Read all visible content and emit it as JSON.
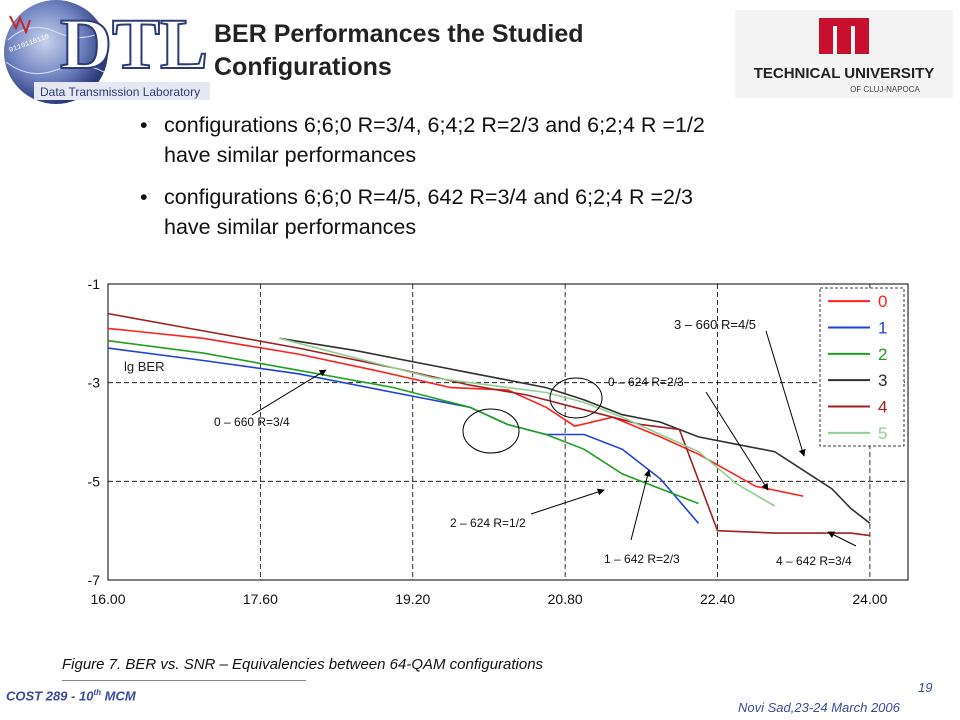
{
  "header": {
    "title_line1": "BER Performances the Studied",
    "title_line2": "Configurations",
    "logo_left_text": "DTL",
    "logo_left_subtitle": "Data Transmission Laboratory",
    "logo_right_text": "TECHNICAL UNIVERSITY",
    "logo_right_subtitle": "OF CLUJ-NAPOCA"
  },
  "bullets": [
    {
      "line1": "configurations 6;6;0 R=3/4, 6;4;2 R=2/3 and 6;2;4 R =1/2",
      "line2": "have similar performances"
    },
    {
      "line1": "configurations 6;6;0 R=4/5, 642 R=3/4 and 6;2;4 R =2/3",
      "line2": "have similar performances"
    }
  ],
  "chart_data": {
    "type": "line",
    "xlim": [
      16.0,
      24.4
    ],
    "ylim": [
      -7,
      -1
    ],
    "xticks": [
      "16.00",
      "17.60",
      "19.20",
      "20.80",
      "22.40",
      "24.00"
    ],
    "xtick_values": [
      16.0,
      17.6,
      19.2,
      20.8,
      22.4,
      24.0
    ],
    "yticks": [
      "-1",
      "-3",
      "-5",
      "-7"
    ],
    "ytick_values": [
      -1,
      -3,
      -5,
      -7
    ],
    "grid": "dashed",
    "legend_position": "top-right",
    "ylabel": "lg BER",
    "series": [
      {
        "name": "0",
        "color": "#ff2020",
        "x": [
          16.0,
          17.0,
          18.0,
          18.8,
          19.6,
          20.2,
          20.6,
          20.9,
          21.3,
          21.8,
          22.2,
          22.8,
          23.3
        ],
        "y": [
          -1.9,
          -2.1,
          -2.42,
          -2.75,
          -3.1,
          -3.15,
          -3.5,
          -3.88,
          -3.7,
          -4.1,
          -4.45,
          -5.1,
          -5.3
        ]
      },
      {
        "name": "1",
        "color": "#2040e0",
        "x": [
          16.0,
          17.0,
          18.0,
          19.0,
          19.4,
          19.8,
          20.2,
          20.6,
          21.0,
          21.4,
          21.8,
          22.2
        ],
        "y": [
          -2.3,
          -2.55,
          -2.82,
          -3.2,
          -3.35,
          -3.5,
          -3.85,
          -4.05,
          -4.05,
          -4.35,
          -4.95,
          -5.85
        ]
      },
      {
        "name": "2",
        "color": "#20a020",
        "x": [
          16.0,
          17.0,
          18.0,
          19.0,
          19.4,
          19.8,
          20.2,
          20.6,
          21.0,
          21.4,
          21.8,
          22.2
        ],
        "y": [
          -2.15,
          -2.4,
          -2.75,
          -3.1,
          -3.3,
          -3.5,
          -3.85,
          -4.05,
          -4.35,
          -4.85,
          -5.15,
          -5.45
        ]
      },
      {
        "name": "3",
        "color": "#303030",
        "x": [
          17.8,
          18.6,
          19.4,
          19.8,
          20.2,
          20.6,
          21.0,
          21.4,
          21.8,
          22.2,
          22.6,
          23.0,
          23.4,
          23.6,
          23.8,
          24.0
        ],
        "y": [
          -2.1,
          -2.35,
          -2.65,
          -2.8,
          -2.95,
          -3.1,
          -3.35,
          -3.65,
          -3.8,
          -4.1,
          -4.25,
          -4.4,
          -4.9,
          -5.15,
          -5.55,
          -5.85
        ]
      },
      {
        "name": "4",
        "color": "#a02020",
        "x": [
          16.0,
          17.0,
          18.0,
          19.0,
          19.8,
          20.4,
          21.0,
          21.6,
          22.0,
          22.4,
          23.0,
          23.8,
          24.0
        ],
        "y": [
          -1.6,
          -1.95,
          -2.3,
          -2.7,
          -3.05,
          -3.25,
          -3.55,
          -3.85,
          -3.95,
          -6.0,
          -6.05,
          -6.05,
          -6.1
        ]
      },
      {
        "name": "5",
        "color": "#90d090",
        "x": [
          17.8,
          18.6,
          19.4,
          20.0,
          20.6,
          21.0,
          21.4,
          21.8,
          22.2,
          22.6,
          23.0
        ],
        "y": [
          -2.1,
          -2.5,
          -2.9,
          -3.05,
          -3.2,
          -3.4,
          -3.7,
          -4.05,
          -4.4,
          -5.05,
          -5.5
        ]
      }
    ],
    "annotations": [
      "3 – 660 R=4/5",
      "0 – 624 R=2/3",
      "0 – 660 R=3/4",
      "2 – 624 R=1/2",
      "1 – 642 R=2/3",
      "4 – 642 R=3/4"
    ]
  },
  "caption": "Figure 7. BER vs. SNR – Equivalencies between 64-QAM configurations",
  "footer": {
    "left": "COST 289 - 10",
    "left_sup": "th",
    "left_suffix": " MCM",
    "page": "19",
    "right": "Novi Sad,23-24  March  2006"
  },
  "colors": {
    "accent": "#3a4aa0",
    "tu_red": "#c8102e",
    "dtl_blue": "#3d4f9a"
  }
}
